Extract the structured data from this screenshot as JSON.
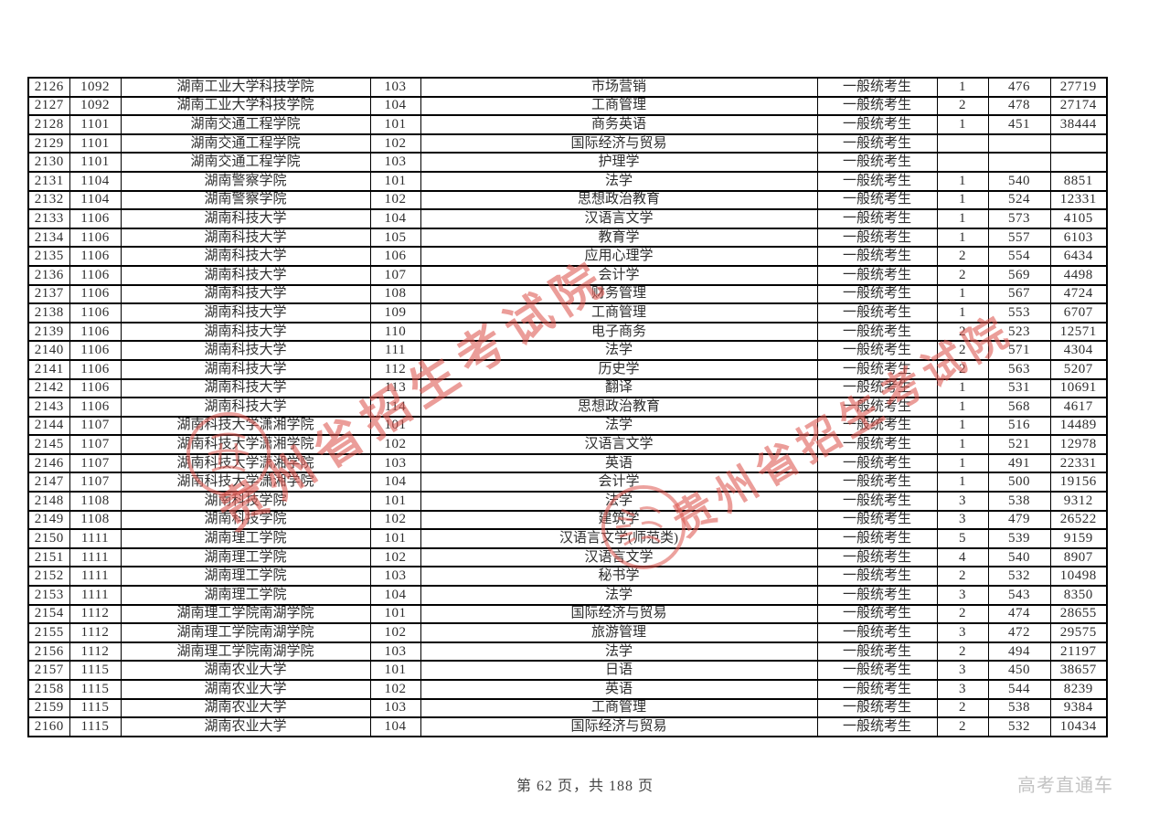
{
  "page": {
    "footer_page_info": "第 62 页，共 188 页",
    "footer_brand": "高考直通车"
  },
  "watermark": {
    "text": "贵州省招生考试院",
    "color": "#dd5750"
  },
  "table": {
    "rows": [
      {
        "seq": "2126",
        "college_code": "1092",
        "college_name": "湖南工业大学科技学院",
        "major_code": "103",
        "major_name": "市场营销",
        "candidate_type": "一般统考生",
        "count": "1",
        "score": "476",
        "rank": "27719"
      },
      {
        "seq": "2127",
        "college_code": "1092",
        "college_name": "湖南工业大学科技学院",
        "major_code": "104",
        "major_name": "工商管理",
        "candidate_type": "一般统考生",
        "count": "2",
        "score": "478",
        "rank": "27174"
      },
      {
        "seq": "2128",
        "college_code": "1101",
        "college_name": "湖南交通工程学院",
        "major_code": "101",
        "major_name": "商务英语",
        "candidate_type": "一般统考生",
        "count": "1",
        "score": "451",
        "rank": "38444"
      },
      {
        "seq": "2129",
        "college_code": "1101",
        "college_name": "湖南交通工程学院",
        "major_code": "102",
        "major_name": "国际经济与贸易",
        "candidate_type": "一般统考生",
        "count": "",
        "score": "",
        "rank": ""
      },
      {
        "seq": "2130",
        "college_code": "1101",
        "college_name": "湖南交通工程学院",
        "major_code": "103",
        "major_name": "护理学",
        "candidate_type": "一般统考生",
        "count": "",
        "score": "",
        "rank": ""
      },
      {
        "seq": "2131",
        "college_code": "1104",
        "college_name": "湖南警察学院",
        "major_code": "101",
        "major_name": "法学",
        "candidate_type": "一般统考生",
        "count": "1",
        "score": "540",
        "rank": "8851"
      },
      {
        "seq": "2132",
        "college_code": "1104",
        "college_name": "湖南警察学院",
        "major_code": "102",
        "major_name": "思想政治教育",
        "candidate_type": "一般统考生",
        "count": "1",
        "score": "524",
        "rank": "12331"
      },
      {
        "seq": "2133",
        "college_code": "1106",
        "college_name": "湖南科技大学",
        "major_code": "104",
        "major_name": "汉语言文学",
        "candidate_type": "一般统考生",
        "count": "1",
        "score": "573",
        "rank": "4105"
      },
      {
        "seq": "2134",
        "college_code": "1106",
        "college_name": "湖南科技大学",
        "major_code": "105",
        "major_name": "教育学",
        "candidate_type": "一般统考生",
        "count": "1",
        "score": "557",
        "rank": "6103"
      },
      {
        "seq": "2135",
        "college_code": "1106",
        "college_name": "湖南科技大学",
        "major_code": "106",
        "major_name": "应用心理学",
        "candidate_type": "一般统考生",
        "count": "2",
        "score": "554",
        "rank": "6434"
      },
      {
        "seq": "2136",
        "college_code": "1106",
        "college_name": "湖南科技大学",
        "major_code": "107",
        "major_name": "会计学",
        "candidate_type": "一般统考生",
        "count": "2",
        "score": "569",
        "rank": "4498"
      },
      {
        "seq": "2137",
        "college_code": "1106",
        "college_name": "湖南科技大学",
        "major_code": "108",
        "major_name": "财务管理",
        "candidate_type": "一般统考生",
        "count": "1",
        "score": "567",
        "rank": "4724"
      },
      {
        "seq": "2138",
        "college_code": "1106",
        "college_name": "湖南科技大学",
        "major_code": "109",
        "major_name": "工商管理",
        "candidate_type": "一般统考生",
        "count": "1",
        "score": "553",
        "rank": "6707"
      },
      {
        "seq": "2139",
        "college_code": "1106",
        "college_name": "湖南科技大学",
        "major_code": "110",
        "major_name": "电子商务",
        "candidate_type": "一般统考生",
        "count": "2",
        "score": "523",
        "rank": "12571"
      },
      {
        "seq": "2140",
        "college_code": "1106",
        "college_name": "湖南科技大学",
        "major_code": "111",
        "major_name": "法学",
        "candidate_type": "一般统考生",
        "count": "2",
        "score": "571",
        "rank": "4304"
      },
      {
        "seq": "2141",
        "college_code": "1106",
        "college_name": "湖南科技大学",
        "major_code": "112",
        "major_name": "历史学",
        "candidate_type": "一般统考生",
        "count": "2",
        "score": "563",
        "rank": "5207"
      },
      {
        "seq": "2142",
        "college_code": "1106",
        "college_name": "湖南科技大学",
        "major_code": "113",
        "major_name": "翻译",
        "candidate_type": "一般统考生",
        "count": "1",
        "score": "531",
        "rank": "10691"
      },
      {
        "seq": "2143",
        "college_code": "1106",
        "college_name": "湖南科技大学",
        "major_code": "114",
        "major_name": "思想政治教育",
        "candidate_type": "一般统考生",
        "count": "1",
        "score": "568",
        "rank": "4617"
      },
      {
        "seq": "2144",
        "college_code": "1107",
        "college_name": "湖南科技大学潇湘学院",
        "major_code": "101",
        "major_name": "法学",
        "candidate_type": "一般统考生",
        "count": "1",
        "score": "516",
        "rank": "14489"
      },
      {
        "seq": "2145",
        "college_code": "1107",
        "college_name": "湖南科技大学潇湘学院",
        "major_code": "102",
        "major_name": "汉语言文学",
        "candidate_type": "一般统考生",
        "count": "1",
        "score": "521",
        "rank": "12978"
      },
      {
        "seq": "2146",
        "college_code": "1107",
        "college_name": "湖南科技大学潇湘学院",
        "major_code": "103",
        "major_name": "英语",
        "candidate_type": "一般统考生",
        "count": "1",
        "score": "491",
        "rank": "22331"
      },
      {
        "seq": "2147",
        "college_code": "1107",
        "college_name": "湖南科技大学潇湘学院",
        "major_code": "104",
        "major_name": "会计学",
        "candidate_type": "一般统考生",
        "count": "1",
        "score": "500",
        "rank": "19156"
      },
      {
        "seq": "2148",
        "college_code": "1108",
        "college_name": "湖南科技学院",
        "major_code": "101",
        "major_name": "法学",
        "candidate_type": "一般统考生",
        "count": "3",
        "score": "538",
        "rank": "9312"
      },
      {
        "seq": "2149",
        "college_code": "1108",
        "college_name": "湖南科技学院",
        "major_code": "102",
        "major_name": "建筑学",
        "candidate_type": "一般统考生",
        "count": "3",
        "score": "479",
        "rank": "26522"
      },
      {
        "seq": "2150",
        "college_code": "1111",
        "college_name": "湖南理工学院",
        "major_code": "101",
        "major_name": "汉语言文学(师范类)",
        "candidate_type": "一般统考生",
        "count": "5",
        "score": "539",
        "rank": "9159"
      },
      {
        "seq": "2151",
        "college_code": "1111",
        "college_name": "湖南理工学院",
        "major_code": "102",
        "major_name": "汉语言文学",
        "candidate_type": "一般统考生",
        "count": "4",
        "score": "540",
        "rank": "8907"
      },
      {
        "seq": "2152",
        "college_code": "1111",
        "college_name": "湖南理工学院",
        "major_code": "103",
        "major_name": "秘书学",
        "candidate_type": "一般统考生",
        "count": "2",
        "score": "532",
        "rank": "10498"
      },
      {
        "seq": "2153",
        "college_code": "1111",
        "college_name": "湖南理工学院",
        "major_code": "104",
        "major_name": "法学",
        "candidate_type": "一般统考生",
        "count": "3",
        "score": "543",
        "rank": "8350"
      },
      {
        "seq": "2154",
        "college_code": "1112",
        "college_name": "湖南理工学院南湖学院",
        "major_code": "101",
        "major_name": "国际经济与贸易",
        "candidate_type": "一般统考生",
        "count": "2",
        "score": "474",
        "rank": "28655"
      },
      {
        "seq": "2155",
        "college_code": "1112",
        "college_name": "湖南理工学院南湖学院",
        "major_code": "102",
        "major_name": "旅游管理",
        "candidate_type": "一般统考生",
        "count": "3",
        "score": "472",
        "rank": "29575"
      },
      {
        "seq": "2156",
        "college_code": "1112",
        "college_name": "湖南理工学院南湖学院",
        "major_code": "103",
        "major_name": "法学",
        "candidate_type": "一般统考生",
        "count": "2",
        "score": "494",
        "rank": "21197"
      },
      {
        "seq": "2157",
        "college_code": "1115",
        "college_name": "湖南农业大学",
        "major_code": "101",
        "major_name": "日语",
        "candidate_type": "一般统考生",
        "count": "3",
        "score": "450",
        "rank": "38657"
      },
      {
        "seq": "2158",
        "college_code": "1115",
        "college_name": "湖南农业大学",
        "major_code": "102",
        "major_name": "英语",
        "candidate_type": "一般统考生",
        "count": "3",
        "score": "544",
        "rank": "8239"
      },
      {
        "seq": "2159",
        "college_code": "1115",
        "college_name": "湖南农业大学",
        "major_code": "103",
        "major_name": "工商管理",
        "candidate_type": "一般统考生",
        "count": "2",
        "score": "538",
        "rank": "9384"
      },
      {
        "seq": "2160",
        "college_code": "1115",
        "college_name": "湖南农业大学",
        "major_code": "104",
        "major_name": "国际经济与贸易",
        "candidate_type": "一般统考生",
        "count": "2",
        "score": "532",
        "rank": "10434"
      }
    ]
  }
}
